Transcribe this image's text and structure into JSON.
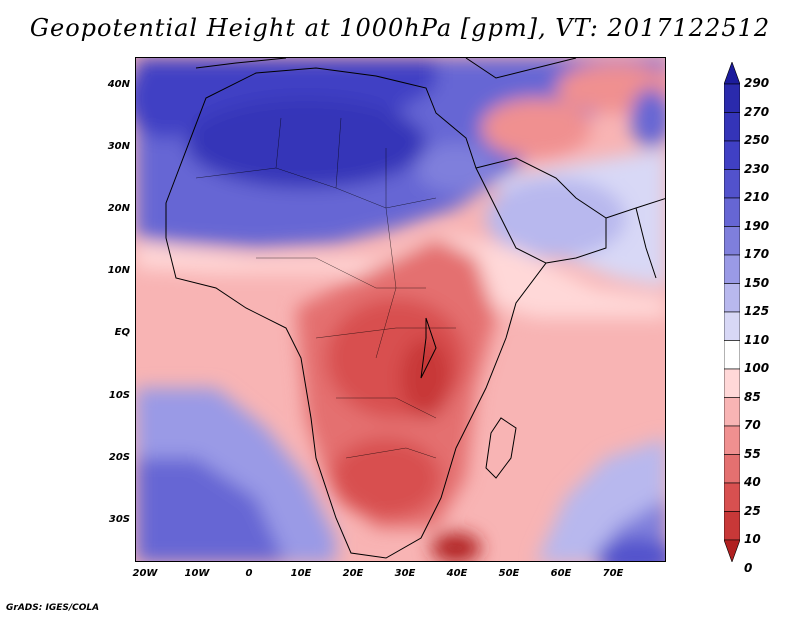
{
  "title": "Geopotential Height at 1000hPa [gpm], VT: 2017122512",
  "credit": "GrADS: IGES/COLA",
  "lat_labels": [
    "40N",
    "30N",
    "20N",
    "10N",
    "EQ",
    "10S",
    "20S",
    "30S"
  ],
  "lon_labels": [
    "20W",
    "10W",
    "0",
    "10E",
    "20E",
    "30E",
    "40E",
    "50E",
    "60E",
    "70E"
  ],
  "colorbar": {
    "levels": [
      "290",
      "270",
      "250",
      "230",
      "210",
      "190",
      "170",
      "150",
      "125",
      "110",
      "100",
      "85",
      "70",
      "55",
      "40",
      "25",
      "10",
      "0"
    ],
    "colors": [
      "#1c1c9c",
      "#2a2aac",
      "#3434b8",
      "#4040c4",
      "#5252cc",
      "#6666d4",
      "#7f7fdc",
      "#9a9ae6",
      "#b8b8ee",
      "#d8d8f6",
      "#ffffff",
      "#ffd8d8",
      "#f8b4b4",
      "#f09090",
      "#e47070",
      "#d85050",
      "#c83838",
      "#b02020"
    ]
  }
}
